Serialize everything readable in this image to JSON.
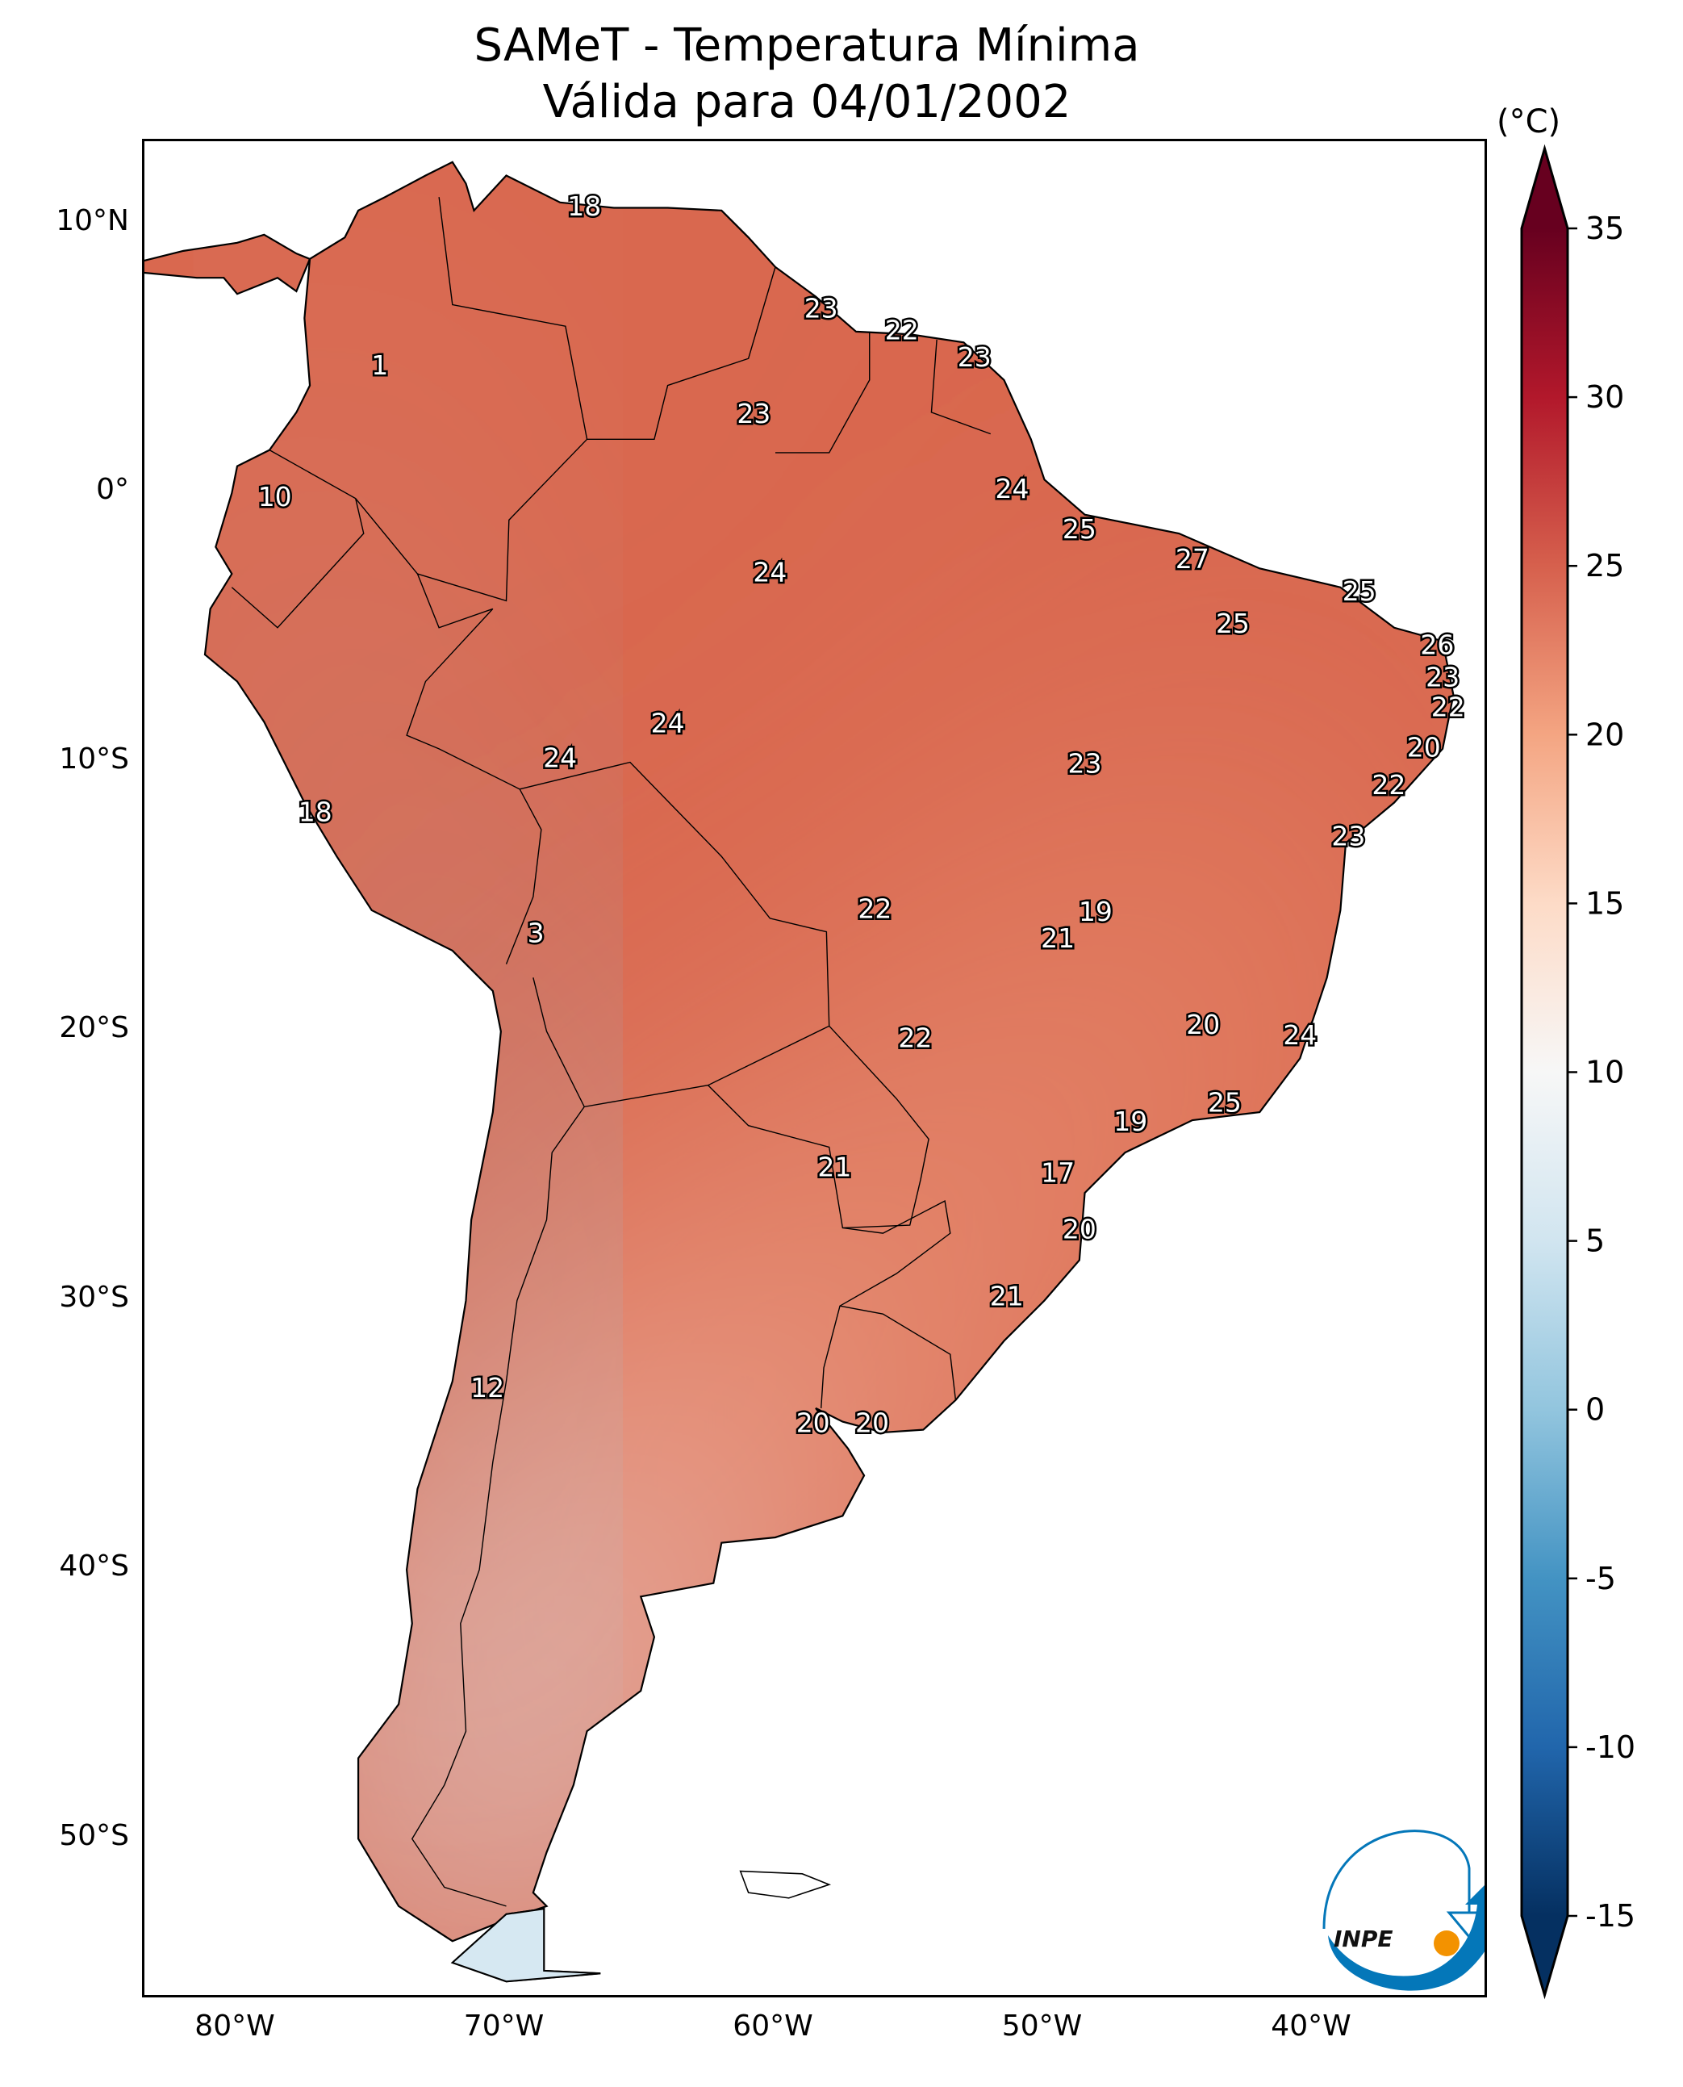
{
  "chart_data": {
    "type": "map",
    "title": "SAMeT - Temperatura Mínima",
    "subtitle": "Válida para 04/01/2002",
    "lon_ticks": [
      {
        "v": -80,
        "label": "80°W"
      },
      {
        "v": -70,
        "label": "70°W"
      },
      {
        "v": -60,
        "label": "60°W"
      },
      {
        "v": -50,
        "label": "50°W"
      },
      {
        "v": -40,
        "label": "40°W"
      }
    ],
    "lat_ticks": [
      {
        "v": 10,
        "label": "10°N"
      },
      {
        "v": 0,
        "label": "0°"
      },
      {
        "v": -10,
        "label": "10°S"
      },
      {
        "v": -20,
        "label": "20°S"
      },
      {
        "v": -30,
        "label": "30°S"
      },
      {
        "v": -40,
        "label": "40°S"
      },
      {
        "v": -50,
        "label": "50°S"
      }
    ],
    "extent": {
      "lon": [
        -83.45,
        -33.5
      ],
      "lat": [
        -56.0,
        13.07
      ]
    },
    "colorbar": {
      "unit": "(°C)",
      "range": [
        -15,
        35
      ],
      "extend": "both",
      "ticks": [
        {
          "v": 35,
          "label": "35"
        },
        {
          "v": 30,
          "label": "30"
        },
        {
          "v": 25,
          "label": "25"
        },
        {
          "v": 20,
          "label": "20"
        },
        {
          "v": 15,
          "label": "15"
        },
        {
          "v": 10,
          "label": "10"
        },
        {
          "v": 5,
          "label": "5"
        },
        {
          "v": 0,
          "label": "0"
        },
        {
          "v": -5,
          "label": "-5"
        },
        {
          "v": -10,
          "label": "-10"
        },
        {
          "v": -15,
          "label": "-15"
        }
      ],
      "colormap": [
        "#053061",
        "#2166ac",
        "#4393c3",
        "#92c5de",
        "#d1e5f0",
        "#f7f7f7",
        "#fddbc7",
        "#f4a582",
        "#d6604d",
        "#b2182b",
        "#67001f"
      ]
    },
    "stations": [
      {
        "lon": -67.1,
        "lat": 10.6,
        "value": "18"
      },
      {
        "lon": -58.3,
        "lat": 6.8,
        "value": "23"
      },
      {
        "lon": -55.3,
        "lat": 6.0,
        "value": "22"
      },
      {
        "lon": -52.6,
        "lat": 5.0,
        "value": "23"
      },
      {
        "lon": -74.7,
        "lat": 4.7,
        "value": "1"
      },
      {
        "lon": -60.8,
        "lat": 2.9,
        "value": "23"
      },
      {
        "lon": -78.6,
        "lat": -0.2,
        "value": "10"
      },
      {
        "lon": -51.2,
        "lat": 0.1,
        "value": "24"
      },
      {
        "lon": -48.7,
        "lat": -1.4,
        "value": "25"
      },
      {
        "lon": -44.5,
        "lat": -2.5,
        "value": "27"
      },
      {
        "lon": -60.2,
        "lat": -3.0,
        "value": "24"
      },
      {
        "lon": -38.3,
        "lat": -3.7,
        "value": "25"
      },
      {
        "lon": -43.0,
        "lat": -4.9,
        "value": "25"
      },
      {
        "lon": -35.4,
        "lat": -5.7,
        "value": "26"
      },
      {
        "lon": -35.2,
        "lat": -6.9,
        "value": "23"
      },
      {
        "lon": -35.0,
        "lat": -8.0,
        "value": "22"
      },
      {
        "lon": -64.0,
        "lat": -8.6,
        "value": "24"
      },
      {
        "lon": -68.0,
        "lat": -9.9,
        "value": "24"
      },
      {
        "lon": -35.9,
        "lat": -9.5,
        "value": "20"
      },
      {
        "lon": -48.5,
        "lat": -10.1,
        "value": "23"
      },
      {
        "lon": -37.2,
        "lat": -10.9,
        "value": "22"
      },
      {
        "lon": -77.1,
        "lat": -11.9,
        "value": "18"
      },
      {
        "lon": -38.7,
        "lat": -12.8,
        "value": "23"
      },
      {
        "lon": -56.3,
        "lat": -15.5,
        "value": "22"
      },
      {
        "lon": -48.1,
        "lat": -15.6,
        "value": "19"
      },
      {
        "lon": -68.9,
        "lat": -16.4,
        "value": "3"
      },
      {
        "lon": -49.5,
        "lat": -16.6,
        "value": "21"
      },
      {
        "lon": -44.1,
        "lat": -19.8,
        "value": "20"
      },
      {
        "lon": -40.5,
        "lat": -20.2,
        "value": "24"
      },
      {
        "lon": -54.8,
        "lat": -20.3,
        "value": "22"
      },
      {
        "lon": -43.3,
        "lat": -22.7,
        "value": "25"
      },
      {
        "lon": -46.8,
        "lat": -23.4,
        "value": "19"
      },
      {
        "lon": -57.8,
        "lat": -25.1,
        "value": "21"
      },
      {
        "lon": -49.5,
        "lat": -25.3,
        "value": "17"
      },
      {
        "lon": -48.7,
        "lat": -27.4,
        "value": "20"
      },
      {
        "lon": -51.4,
        "lat": -29.9,
        "value": "21"
      },
      {
        "lon": -70.7,
        "lat": -33.3,
        "value": "12"
      },
      {
        "lon": -58.6,
        "lat": -34.6,
        "value": "20"
      },
      {
        "lon": -56.4,
        "lat": -34.6,
        "value": "20"
      }
    ]
  },
  "logo": {
    "text": "INPE"
  }
}
